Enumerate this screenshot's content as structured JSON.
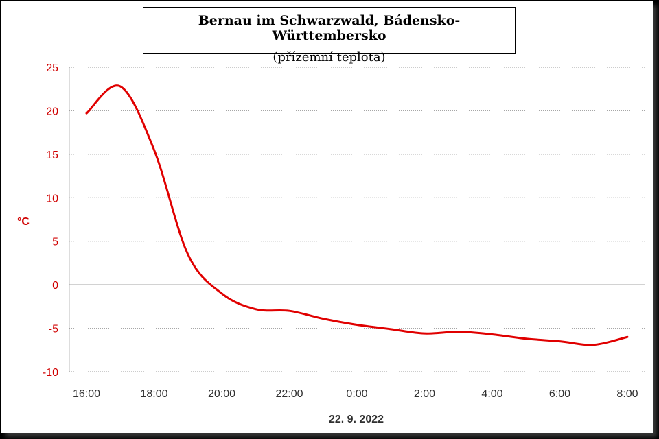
{
  "colors": {
    "series": "#e00000",
    "axis_text": "#d00000",
    "grid": "#999999"
  },
  "chart_data": {
    "type": "line",
    "title": "Bernau im Schwarzwald, Bádensko-Württembersko",
    "subtitle": "(přízemní teplota)",
    "ylabel": "°C",
    "xlabel": "22. 9. 2022",
    "ylim": [
      -10,
      25
    ],
    "yticks": [
      -10,
      -5,
      0,
      5,
      10,
      15,
      20,
      25
    ],
    "xticks": [
      "16:00",
      "18:00",
      "20:00",
      "22:00",
      "0:00",
      "2:00",
      "4:00",
      "6:00",
      "8:00"
    ],
    "grid": true,
    "series": [
      {
        "x": [
          "16:00",
          "17:00",
          "18:00",
          "19:00",
          "20:00",
          "21:00",
          "22:00",
          "23:00",
          "0:00",
          "1:00",
          "2:00",
          "3:00",
          "4:00",
          "5:00",
          "6:00",
          "7:00",
          "8:00"
        ],
        "values": [
          19.7,
          22.8,
          15.5,
          3.5,
          -1.0,
          -2.8,
          -3.0,
          -3.9,
          -4.6,
          -5.1,
          -5.6,
          -5.4,
          -5.7,
          -6.2,
          -6.5,
          -6.9,
          -6.0
        ]
      }
    ]
  }
}
